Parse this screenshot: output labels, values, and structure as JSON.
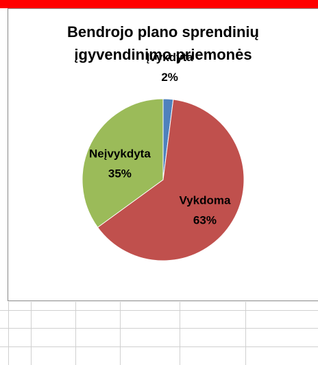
{
  "chart_data": {
    "type": "pie",
    "title": "Bendrojo plano sprendinių įgyvendinimo priemonės",
    "categories": [
      "Įvykdyta",
      "Vykdoma",
      "Neįvykdyta"
    ],
    "values": [
      2,
      63,
      35
    ],
    "value_labels": [
      "2%",
      "63%",
      "35%"
    ],
    "colors": [
      "#4f81bd",
      "#c0504d",
      "#9bbb59"
    ]
  }
}
